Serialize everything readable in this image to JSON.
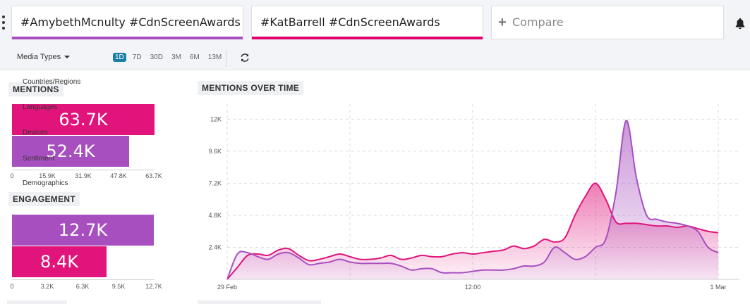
{
  "search": {
    "term1": "#AmybethMcnulty #CdnScreenAwards",
    "term2": "#KatBarrell #CdnScreenAwards",
    "compare": "Compare",
    "term1_color": "#a84fc0",
    "term2_color": "#e0006e"
  },
  "filters": {
    "media_types": "Media Types",
    "ranges": [
      "1D",
      "7D",
      "30D",
      "3M",
      "6M",
      "13M"
    ],
    "active_range": "1D"
  },
  "side_menu": [
    "Countries/Regions",
    "Languages",
    "Devices",
    "Sentiment",
    "Demographics"
  ],
  "mentions": {
    "title": "MENTIONS",
    "bars": [
      {
        "label": "63.7K",
        "value": 63.7,
        "color": "#e0147a"
      },
      {
        "label": "52.4K",
        "value": 52.4,
        "color": "#a84fc0"
      }
    ],
    "ticks": [
      "0",
      "15.9K",
      "31.9K",
      "47.8K",
      "63.7K"
    ],
    "max": 63.7
  },
  "engagement": {
    "title": "ENGAGEMENT",
    "bars": [
      {
        "label": "12.7K",
        "value": 12.7,
        "color": "#a84fc0"
      },
      {
        "label": "8.4K",
        "value": 8.4,
        "color": "#e0147a"
      }
    ],
    "ticks": [
      "0",
      "3.2K",
      "6.3K",
      "9.5K",
      "12.7K"
    ],
    "max": 12.7
  },
  "chart_data": {
    "type": "area",
    "title": "MENTIONS OVER TIME",
    "y_ticks": [
      "2.4K",
      "4.8K",
      "7.2K",
      "9.6K",
      "12K"
    ],
    "ylim": [
      0,
      12600
    ],
    "x_ticks": [
      {
        "label": "29 Feb",
        "x": 0
      },
      {
        "label": "12:00",
        "x": 12
      },
      {
        "label": "1 Mar",
        "x": 24
      }
    ],
    "xlim": [
      0,
      24
    ],
    "grid": true,
    "series": [
      {
        "color": "#e0147a",
        "x": [
          0,
          0.5,
          1,
          1.5,
          2,
          2.5,
          3,
          3.5,
          4,
          4.5,
          5,
          5.5,
          6,
          6.5,
          7,
          7.5,
          8,
          8.5,
          9,
          9.5,
          10,
          10.5,
          11,
          11.5,
          12,
          12.5,
          13,
          13.5,
          14,
          14.5,
          15,
          15.5,
          16,
          16.5,
          17,
          17.5,
          18,
          18.5,
          19,
          19.5,
          20,
          20.5,
          21,
          21.5,
          22,
          22.5,
          23,
          23.5,
          24
        ],
        "values": [
          0,
          900,
          1800,
          1900,
          1800,
          2200,
          2300,
          1800,
          1400,
          1500,
          1700,
          1900,
          1700,
          1500,
          1500,
          1600,
          1800,
          1500,
          1600,
          1800,
          1700,
          1700,
          1900,
          2000,
          1900,
          2000,
          2100,
          2200,
          2500,
          2300,
          2500,
          3000,
          2800,
          3100,
          4800,
          6200,
          7200,
          6000,
          4300,
          4200,
          4200,
          4100,
          4000,
          4000,
          3900,
          4000,
          3800,
          3600,
          3500
        ]
      },
      {
        "color": "#a84fc0",
        "x": [
          0,
          0.5,
          1,
          1.5,
          2,
          2.5,
          3,
          3.5,
          4,
          4.5,
          5,
          5.5,
          6,
          6.5,
          7,
          7.5,
          8,
          8.5,
          9,
          9.5,
          10,
          10.5,
          11,
          11.5,
          12,
          12.5,
          13,
          13.5,
          14,
          14.5,
          15,
          15.5,
          16,
          16.5,
          17,
          17.5,
          18,
          18.5,
          19,
          19.5,
          20,
          20.5,
          21,
          21.5,
          22,
          22.5,
          23,
          23.5,
          24
        ],
        "values": [
          0,
          1900,
          2000,
          1700,
          1500,
          1900,
          2000,
          1600,
          1100,
          1200,
          1300,
          1500,
          1300,
          1200,
          1200,
          1200,
          1200,
          1000,
          700,
          800,
          800,
          500,
          500,
          500,
          600,
          700,
          700,
          700,
          800,
          1000,
          1000,
          1300,
          2400,
          2000,
          1500,
          1700,
          2400,
          3000,
          6500,
          11900,
          7600,
          4800,
          4500,
          4300,
          4200,
          4000,
          3600,
          2400,
          2000
        ]
      }
    ]
  }
}
